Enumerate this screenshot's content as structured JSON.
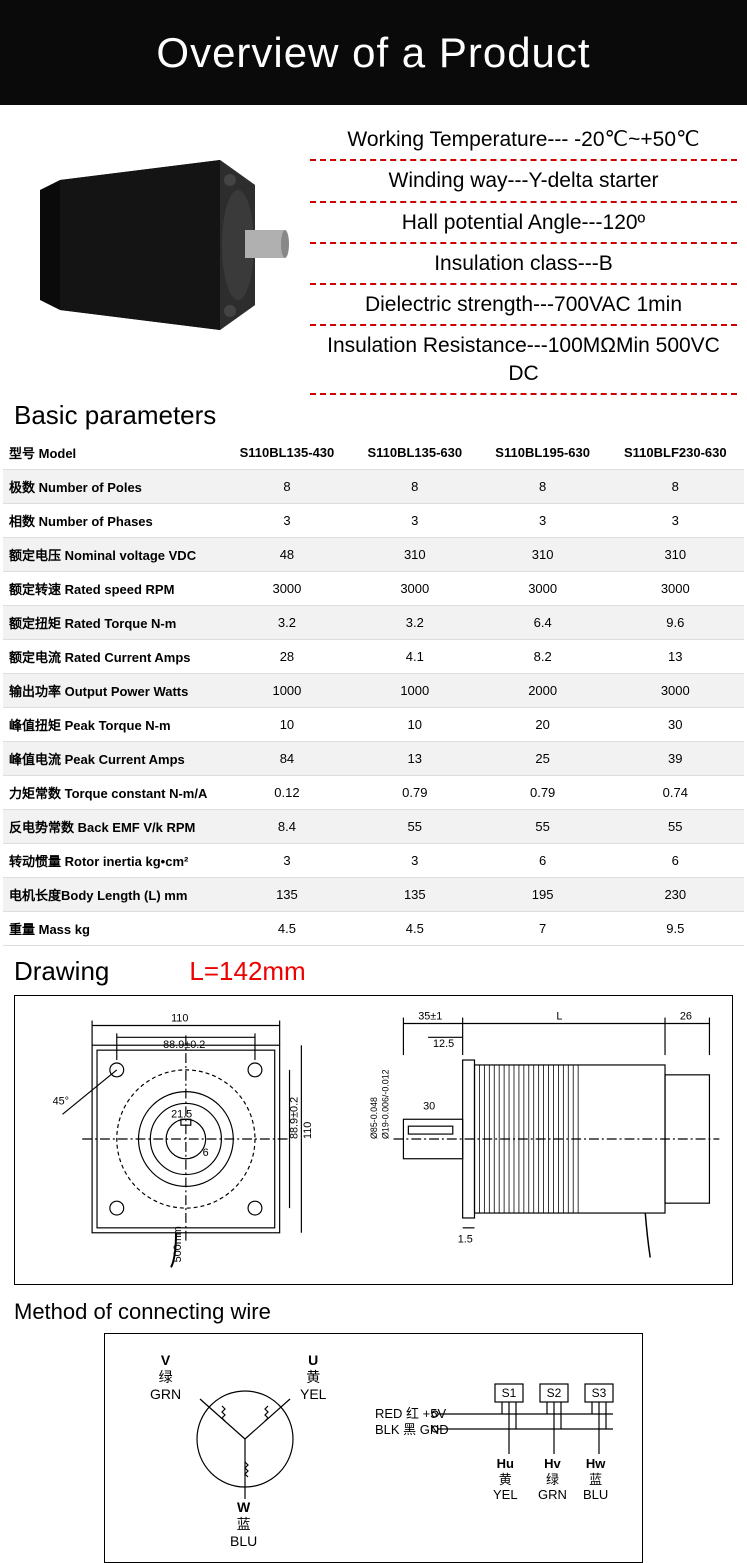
{
  "header": {
    "title": "Overview of a Product"
  },
  "specs": {
    "items": [
      "Working Temperature---   -20℃~+50℃",
      "Winding way---Y-delta starter",
      "Hall potential Angle---120º",
      "Insulation class---B",
      "Dielectric strength---700VAC 1min",
      "Insulation Resistance---100MΩMin 500VC DC"
    ],
    "divider_color": "#cc0000",
    "text_color": "#000000"
  },
  "basic_params": {
    "title": "Basic parameters",
    "columns": [
      "S110BL135-430",
      "S110BL135-630",
      "S110BL195-630",
      "S110BLF230-630"
    ],
    "rows": [
      {
        "label": "型号 Model",
        "values": [
          "S110BL135-430",
          "S110BL135-630",
          "S110BL195-630",
          "S110BLF230-630"
        ],
        "is_header": true
      },
      {
        "label": "极数 Number of  Poles",
        "values": [
          "8",
          "8",
          "8",
          "8"
        ]
      },
      {
        "label": "相数 Number of  Phases",
        "values": [
          "3",
          "3",
          "3",
          "3"
        ]
      },
      {
        "label": "额定电压 Nominal voltage VDC",
        "values": [
          "48",
          "310",
          "310",
          "310"
        ]
      },
      {
        "label": "额定转速 Rated speed RPM",
        "values": [
          "3000",
          "3000",
          "3000",
          "3000"
        ]
      },
      {
        "label": "额定扭矩 Rated Torque  N-m",
        "values": [
          "3.2",
          "3.2",
          "6.4",
          "9.6"
        ]
      },
      {
        "label": "额定电流 Rated Current  Amps",
        "values": [
          "28",
          "4.1",
          "8.2",
          "13"
        ]
      },
      {
        "label": "输出功率 Output Power  Watts",
        "values": [
          "1000",
          "1000",
          "2000",
          "3000"
        ]
      },
      {
        "label": "峰值扭矩 Peak Torque  N-m",
        "values": [
          "10",
          "10",
          "20",
          "30"
        ]
      },
      {
        "label": "峰值电流 Peak Current  Amps",
        "values": [
          "84",
          "13",
          "25",
          "39"
        ]
      },
      {
        "label": "力矩常数 Torque constant  N-m/A",
        "values": [
          "0.12",
          "0.79",
          "0.79",
          "0.74"
        ]
      },
      {
        "label": "反电势常数 Back EMF V/k RPM",
        "values": [
          "8.4",
          "55",
          "55",
          "55"
        ]
      },
      {
        "label": "转动惯量 Rotor inertia  kg•cm²",
        "values": [
          "3",
          "3",
          "6",
          "6"
        ]
      },
      {
        "label": "电机长度Body Length (L)  mm",
        "values": [
          "135",
          "135",
          "195",
          "230"
        ]
      },
      {
        "label": "重量 Mass  kg",
        "values": [
          "4.5",
          "4.5",
          "7",
          "9.5"
        ]
      }
    ],
    "row_bg_even": "#f2f2f2",
    "border_color": "#dddddd"
  },
  "drawing": {
    "title": "Drawing",
    "length_label": "L=142mm",
    "length_color": "#ee0000",
    "front": {
      "dims": {
        "width": "110",
        "bolt": "88.9±0.2",
        "shaft_r": "21.5",
        "key": "6",
        "angle": "45°",
        "cable": "500mm"
      }
    },
    "side": {
      "dims": {
        "shaft_len": "35±1",
        "step": "12.5",
        "key_len": "30",
        "L_label": "L",
        "rear": "26",
        "dia": "Ø19-0.006/-0.012",
        "flange_dia": "Ø85-0.048",
        "gap": "1.5"
      }
    }
  },
  "wiring": {
    "title": "Method of connecting wire",
    "y_connection": {
      "U": {
        "name": "U",
        "cn": "黄",
        "en": "YEL"
      },
      "V": {
        "name": "V",
        "cn": "绿",
        "en": "GRN"
      },
      "W": {
        "name": "W",
        "cn": "蓝",
        "en": "BLU"
      }
    },
    "hall": {
      "sensors": [
        "S1",
        "S2",
        "S3"
      ],
      "power": [
        {
          "label": "RED 红 +5V",
          "color": "#000000"
        },
        {
          "label": "BLK 黑 GND",
          "color": "#000000"
        }
      ],
      "outputs": [
        {
          "name": "Hu",
          "cn": "黄",
          "en": "YEL"
        },
        {
          "name": "Hv",
          "cn": "绿",
          "en": "GRN"
        },
        {
          "name": "Hw",
          "cn": "蓝",
          "en": "BLU"
        }
      ]
    }
  }
}
